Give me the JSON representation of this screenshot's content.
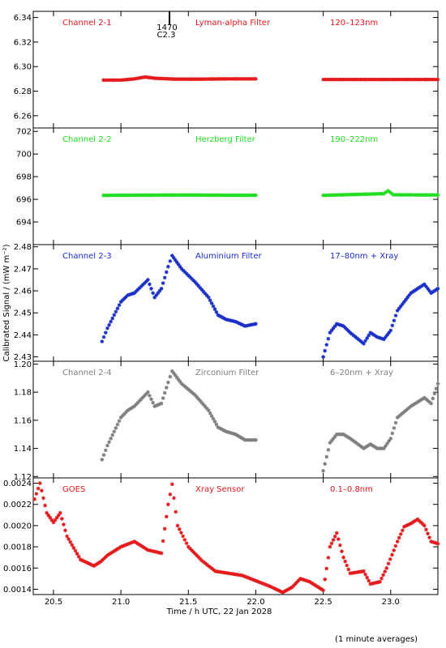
{
  "chart_data": {
    "type": "scatter",
    "xlabel": "Time / h UTC, 22 Jan 2028",
    "ylabel": "Calibrated Signal / (mW m⁻²)",
    "footnote": "(1 minute averages)",
    "xlim": [
      20.35,
      23.35
    ],
    "x_ticks": [
      20.5,
      21.0,
      21.5,
      22.0,
      22.5,
      23.0,
      23.5
    ],
    "x_tick_labels": [
      "20.5",
      "21.0",
      "21.5",
      "22.0",
      "22.5",
      "23.0",
      "23.5"
    ],
    "data_gap": [
      22.0,
      22.5
    ],
    "marker": {
      "x": 21.36,
      "top_label": "1470",
      "bottom_label": "C2.3"
    },
    "panels": [
      {
        "name": "Channel 2-1",
        "filter": "Lyman-alpha Filter",
        "band": "120–123nm",
        "color": "#e41a1c",
        "ylim": [
          6.25,
          6.345
        ],
        "y_ticks": [
          6.26,
          6.28,
          6.3,
          6.32,
          6.34
        ],
        "y_tick_labels": [
          "6.26",
          "6.28",
          "6.30",
          "6.32",
          "6.34"
        ],
        "points": [
          [
            20.87,
            6.289
          ],
          [
            21.0,
            6.289
          ],
          [
            21.1,
            6.29
          ],
          [
            21.18,
            6.2915
          ],
          [
            21.25,
            6.2905
          ],
          [
            21.4,
            6.2898
          ],
          [
            21.6,
            6.2898
          ],
          [
            21.8,
            6.29
          ],
          [
            22.0,
            6.29
          ],
          [
            22.5,
            6.2895
          ],
          [
            22.8,
            6.2895
          ],
          [
            23.1,
            6.2895
          ],
          [
            23.35,
            6.2895
          ]
        ]
      },
      {
        "name": "Channel 2-2",
        "filter": "Herzberg Filter",
        "band": "190–222nm",
        "color": "#22dd22",
        "ylim": [
          692.0,
          702.3
        ],
        "y_ticks": [
          694,
          696,
          698,
          700,
          702
        ],
        "y_tick_labels": [
          "694",
          "696",
          "698",
          "700",
          "702"
        ],
        "points": [
          [
            20.87,
            696.35
          ],
          [
            21.2,
            696.37
          ],
          [
            21.5,
            696.38
          ],
          [
            21.8,
            696.36
          ],
          [
            22.0,
            696.36
          ],
          [
            22.5,
            696.35
          ],
          [
            22.8,
            696.45
          ],
          [
            22.95,
            696.5
          ],
          [
            22.98,
            696.75
          ],
          [
            23.02,
            696.4
          ],
          [
            23.35,
            696.38
          ]
        ]
      },
      {
        "name": "Channel 2-3",
        "filter": "Aluminium Filter",
        "band": "17–80nm + Xray",
        "color": "#1a2fc8",
        "ylim": [
          2.428,
          2.481
        ],
        "y_ticks": [
          2.43,
          2.44,
          2.45,
          2.46,
          2.47,
          2.48
        ],
        "y_tick_labels": [
          "2.43",
          "2.44",
          "2.45",
          "2.46",
          "2.47",
          "2.48"
        ],
        "points": [
          [
            20.86,
            2.437
          ],
          [
            20.9,
            2.443
          ],
          [
            20.95,
            2.449
          ],
          [
            21.0,
            2.455
          ],
          [
            21.05,
            2.458
          ],
          [
            21.1,
            2.459
          ],
          [
            21.15,
            2.462
          ],
          [
            21.2,
            2.465
          ],
          [
            21.25,
            2.457
          ],
          [
            21.3,
            2.461
          ],
          [
            21.35,
            2.471
          ],
          [
            21.38,
            2.476
          ],
          [
            21.45,
            2.47
          ],
          [
            21.55,
            2.464
          ],
          [
            21.65,
            2.457
          ],
          [
            21.72,
            2.449
          ],
          [
            21.78,
            2.447
          ],
          [
            21.85,
            2.446
          ],
          [
            21.92,
            2.444
          ],
          [
            22.0,
            2.445
          ],
          [
            22.5,
            2.43
          ],
          [
            22.55,
            2.441
          ],
          [
            22.6,
            2.445
          ],
          [
            22.65,
            2.444
          ],
          [
            22.7,
            2.441
          ],
          [
            22.8,
            2.436
          ],
          [
            22.85,
            2.441
          ],
          [
            22.9,
            2.439
          ],
          [
            22.95,
            2.438
          ],
          [
            23.0,
            2.442
          ],
          [
            23.05,
            2.451
          ],
          [
            23.15,
            2.459
          ],
          [
            23.25,
            2.463
          ],
          [
            23.3,
            2.459
          ],
          [
            23.35,
            2.461
          ]
        ]
      },
      {
        "name": "Channel 2-4",
        "filter": "Zirconium Filter",
        "band": "6–20nm + Xray",
        "color": "#7f7f7f",
        "ylim": [
          1.119,
          1.202
        ],
        "y_ticks": [
          1.12,
          1.14,
          1.16,
          1.18,
          1.2
        ],
        "y_tick_labels": [
          "1.12",
          "1.14",
          "1.16",
          "1.18",
          "1.20"
        ],
        "points": [
          [
            20.86,
            1.132
          ],
          [
            20.9,
            1.142
          ],
          [
            20.95,
            1.152
          ],
          [
            21.0,
            1.162
          ],
          [
            21.05,
            1.167
          ],
          [
            21.1,
            1.17
          ],
          [
            21.15,
            1.175
          ],
          [
            21.2,
            1.18
          ],
          [
            21.25,
            1.17
          ],
          [
            21.3,
            1.172
          ],
          [
            21.35,
            1.187
          ],
          [
            21.38,
            1.195
          ],
          [
            21.45,
            1.186
          ],
          [
            21.55,
            1.178
          ],
          [
            21.65,
            1.167
          ],
          [
            21.72,
            1.155
          ],
          [
            21.78,
            1.152
          ],
          [
            21.85,
            1.15
          ],
          [
            21.92,
            1.146
          ],
          [
            22.0,
            1.146
          ],
          [
            22.5,
            1.124
          ],
          [
            22.55,
            1.144
          ],
          [
            22.6,
            1.15
          ],
          [
            22.65,
            1.15
          ],
          [
            22.7,
            1.147
          ],
          [
            22.8,
            1.14
          ],
          [
            22.85,
            1.143
          ],
          [
            22.9,
            1.14
          ],
          [
            22.95,
            1.14
          ],
          [
            23.0,
            1.147
          ],
          [
            23.05,
            1.162
          ],
          [
            23.15,
            1.17
          ],
          [
            23.25,
            1.176
          ],
          [
            23.3,
            1.172
          ],
          [
            23.35,
            1.186
          ]
        ]
      },
      {
        "name": "GOES",
        "filter": "Xray Sensor",
        "band": "0.1–0.8nm",
        "color": "#e41a1c",
        "ylim": [
          0.00135,
          0.00245
        ],
        "y_ticks": [
          0.0014,
          0.0016,
          0.0018,
          0.002,
          0.0022,
          0.0024
        ],
        "y_tick_labels": [
          "0.0014",
          "0.0016",
          "0.0018",
          "0.0020",
          "0.0022",
          "0.0024"
        ],
        "points": [
          [
            20.36,
            0.00225
          ],
          [
            20.4,
            0.0024
          ],
          [
            20.45,
            0.00212
          ],
          [
            20.5,
            0.00203
          ],
          [
            20.55,
            0.00212
          ],
          [
            20.6,
            0.0019
          ],
          [
            20.7,
            0.00168
          ],
          [
            20.8,
            0.00162
          ],
          [
            20.85,
            0.00166
          ],
          [
            20.9,
            0.00172
          ],
          [
            21.0,
            0.0018
          ],
          [
            21.1,
            0.00185
          ],
          [
            21.2,
            0.00177
          ],
          [
            21.3,
            0.00174
          ],
          [
            21.35,
            0.0022
          ],
          [
            21.38,
            0.00239
          ],
          [
            21.42,
            0.002
          ],
          [
            21.5,
            0.0018
          ],
          [
            21.6,
            0.00167
          ],
          [
            21.7,
            0.00157
          ],
          [
            21.8,
            0.00155
          ],
          [
            21.9,
            0.00153
          ],
          [
            22.0,
            0.00148
          ],
          [
            22.1,
            0.00143
          ],
          [
            22.2,
            0.00137
          ],
          [
            22.27,
            0.00142
          ],
          [
            22.33,
            0.0015
          ],
          [
            22.4,
            0.00147
          ],
          [
            22.45,
            0.00143
          ],
          [
            22.5,
            0.00139
          ],
          [
            22.55,
            0.0018
          ],
          [
            22.6,
            0.00193
          ],
          [
            22.65,
            0.0017
          ],
          [
            22.7,
            0.00155
          ],
          [
            22.8,
            0.00157
          ],
          [
            22.85,
            0.00145
          ],
          [
            22.92,
            0.00147
          ],
          [
            22.97,
            0.0016
          ],
          [
            23.05,
            0.00185
          ],
          [
            23.1,
            0.00199
          ],
          [
            23.15,
            0.00202
          ],
          [
            23.2,
            0.00206
          ],
          [
            23.25,
            0.002
          ],
          [
            23.3,
            0.00185
          ],
          [
            23.35,
            0.00183
          ]
        ]
      }
    ]
  }
}
